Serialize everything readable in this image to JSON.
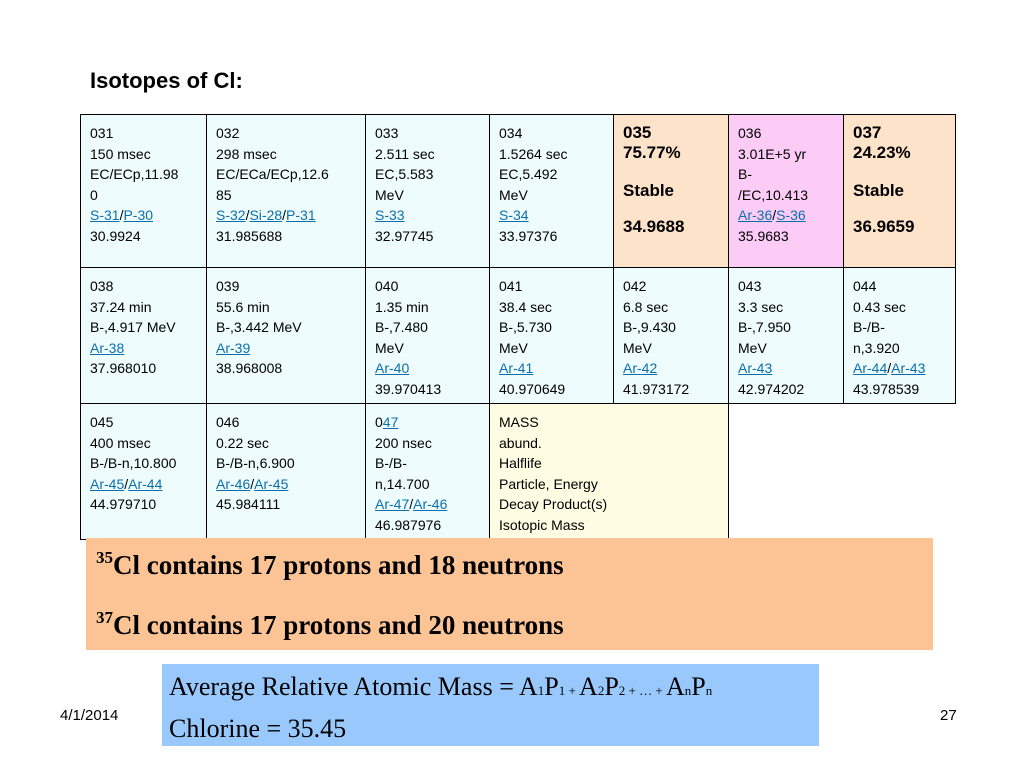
{
  "slide": {
    "title": "Isotopes of Cl:",
    "date": "4/1/2014",
    "page_number": "27"
  },
  "table": {
    "rows": [
      [
        {
          "type": "std",
          "mass": "031",
          "halflife": "150 msec",
          "decay": "EC/ECp,11.98",
          "decay2": "0",
          "products": [
            "S-31",
            "P-30"
          ],
          "isomass": "30.9924"
        },
        {
          "type": "std",
          "mass": "032",
          "halflife": "298 msec",
          "decay": "EC/ECa/ECp,12.6",
          "decay2": "85",
          "products": [
            "S-32",
            "Si-28",
            "P-31"
          ],
          "isomass": "31.985688"
        },
        {
          "type": "std",
          "mass": "033",
          "halflife": "2.511 sec",
          "decay": "EC,5.583",
          "decay2": "MeV",
          "products": [
            "S-33"
          ],
          "isomass": "32.97745"
        },
        {
          "type": "std",
          "mass": "034",
          "halflife": "1.5264 sec",
          "decay": "EC,5.492",
          "decay2": "MeV",
          "products": [
            "S-34"
          ],
          "isomass": "33.97376"
        },
        {
          "type": "stable",
          "mass": "035",
          "abund": "75.77%",
          "label": "Stable",
          "isomass": "34.9688"
        },
        {
          "type": "std",
          "mass": "036",
          "halflife": "3.01E+5 yr",
          "decay": "B-",
          "decay2": "/EC,10.413",
          "products": [
            "Ar-36",
            "S-36"
          ],
          "isomass": "35.9683"
        },
        {
          "type": "stable",
          "mass": "037",
          "abund": "24.23%",
          "label": "Stable",
          "isomass": "36.9659"
        }
      ],
      [
        {
          "type": "std",
          "mass": "038",
          "halflife": "37.24 min",
          "decay": "B-,4.917 MeV",
          "products": [
            "Ar-38"
          ],
          "isomass": "37.968010"
        },
        {
          "type": "std",
          "mass": "039",
          "halflife": "55.6 min",
          "decay": "B-,3.442 MeV",
          "products": [
            "Ar-39"
          ],
          "isomass": "38.968008"
        },
        {
          "type": "std",
          "mass": "040",
          "halflife": "1.35 min",
          "decay": "B-,7.480",
          "decay2": "MeV",
          "products": [
            "Ar-40"
          ],
          "isomass": "39.970413"
        },
        {
          "type": "std",
          "mass": "041",
          "halflife": "38.4 sec",
          "decay": "B-,5.730",
          "decay2": "MeV",
          "products": [
            "Ar-41"
          ],
          "isomass": "40.970649"
        },
        {
          "type": "std",
          "mass": "042",
          "halflife": "6.8 sec",
          "decay": "B-,9.430",
          "decay2": "MeV",
          "products": [
            "Ar-42"
          ],
          "isomass": "41.973172"
        },
        {
          "type": "std",
          "mass": "043",
          "halflife": "3.3 sec",
          "decay": "B-,7.950",
          "decay2": "MeV",
          "products": [
            "Ar-43"
          ],
          "isomass": "42.974202"
        },
        {
          "type": "std",
          "mass": "044",
          "halflife": "0.43 sec",
          "decay": "B-/B-",
          "decay2": "n,3.920",
          "products": [
            "Ar-44",
            "Ar-43"
          ],
          "isomass": "43.978539"
        }
      ],
      [
        {
          "type": "std",
          "mass": "045",
          "halflife": "400 msec",
          "decay": "B-/B-n,10.800",
          "products": [
            "Ar-45",
            "Ar-44"
          ],
          "isomass": "44.979710"
        },
        {
          "type": "std",
          "mass": "046",
          "halflife": "0.22 sec",
          "decay": "B-/B-n,6.900",
          "products": [
            "Ar-46",
            "Ar-45"
          ],
          "isomass": "45.984111"
        },
        {
          "type": "std047",
          "mass_prefix": "0",
          "mass_link": "47",
          "halflife": "200 nsec",
          "decay": "B-/B-",
          "decay2": "n,14.700",
          "products": [
            "Ar-47",
            "Ar-46"
          ],
          "isomass": "46.987976"
        },
        {
          "type": "legend",
          "lines": [
            "MASS",
            "abund.",
            "Halflife",
            "Particle, Energy",
            "Decay Product(s)",
            "Isotopic Mass"
          ]
        }
      ]
    ]
  },
  "facts": {
    "line1": {
      "sup": "35",
      "text": "Cl contains 17 protons and 18 neutrons"
    },
    "line2": {
      "sup": "37",
      "text": "Cl contains 17 protons and 20 neutrons"
    }
  },
  "formula": {
    "lhs": "Average Relative Atomic Mass = ",
    "terms": [
      {
        "A": "A",
        "a_sub": "1",
        "P": "P",
        "p_sub": "1",
        "op": " + "
      },
      {
        "A": "A",
        "a_sub": "2",
        "P": "P",
        "p_sub": "2",
        "op": " + … + "
      },
      {
        "A": "A",
        "a_sub": "n",
        "P": "P",
        "p_sub": "n",
        "op": ""
      }
    ],
    "result_label": "Chlorine",
    "result_value": " = 35.45"
  },
  "colors": {
    "cell_default": "#eefcfd",
    "stable": "#fde3c9",
    "pink": "#fcccf7",
    "legend": "#fefce3",
    "facts_bg": "#fcc494",
    "formula_bg": "#99c8fc",
    "link": "#0b6fae"
  }
}
